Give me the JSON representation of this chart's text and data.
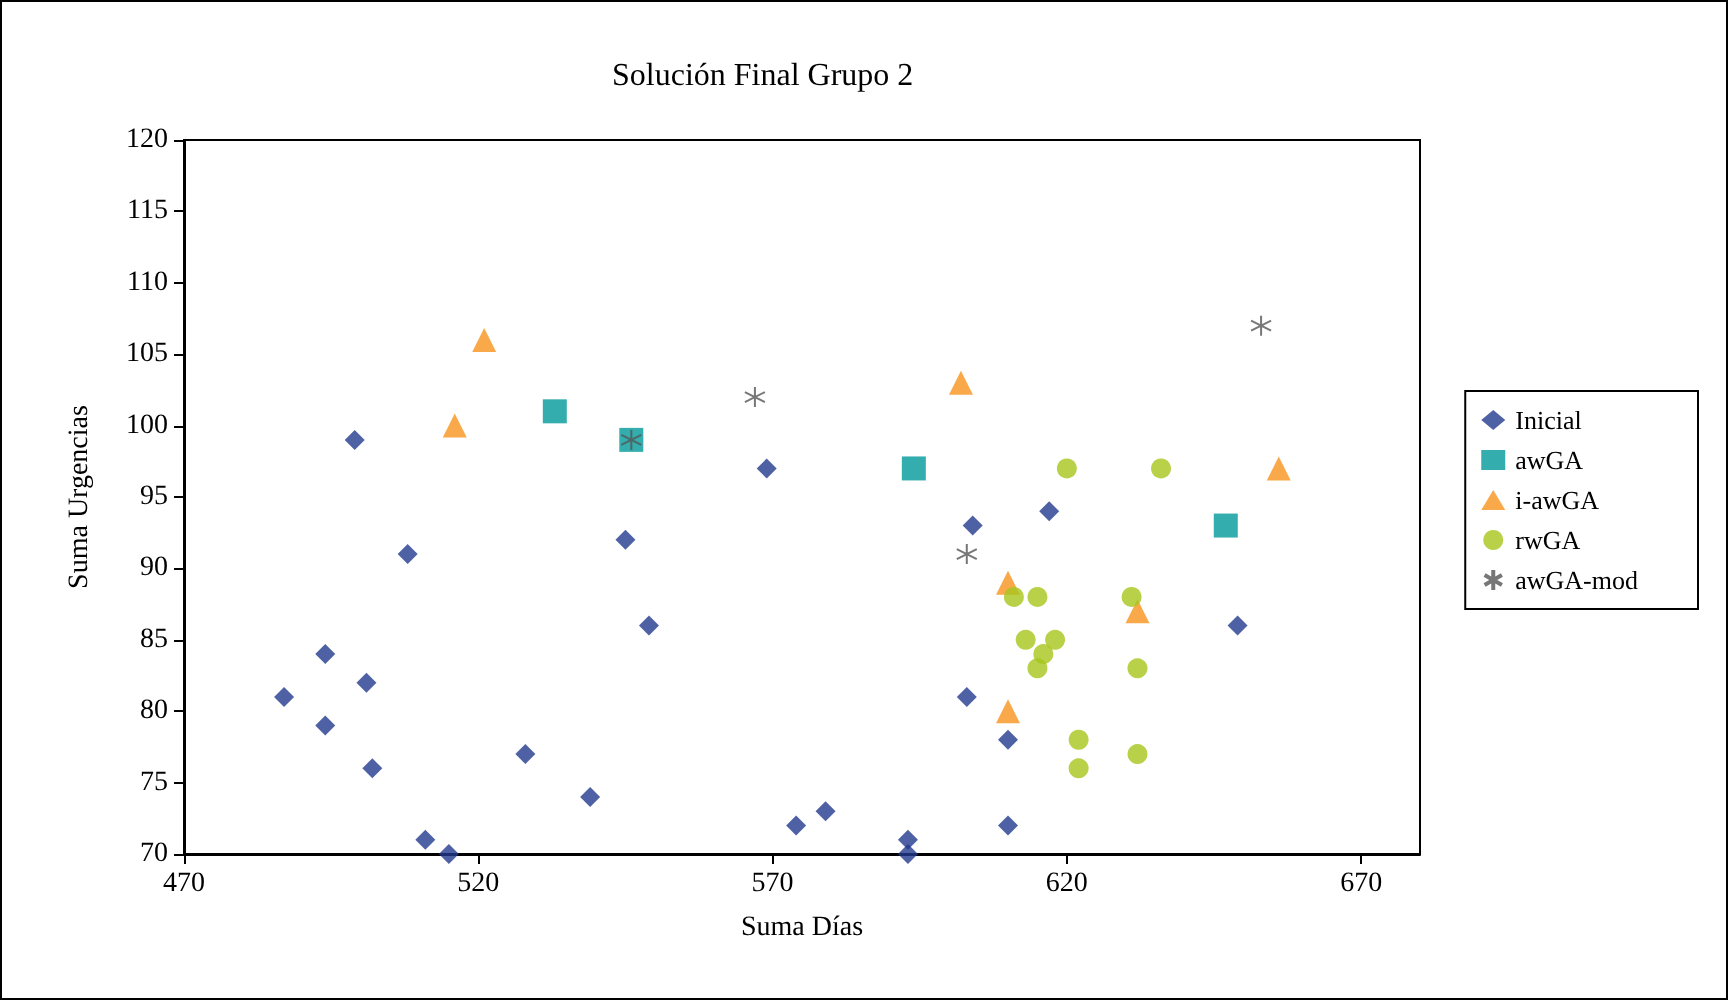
{
  "chart_data": {
    "type": "scatter",
    "title": "Solución Final Grupo 2",
    "xlabel": "Suma Días",
    "ylabel": "Suma Urgencias",
    "xlim": [
      470,
      680
    ],
    "xticks": [
      470,
      520,
      570,
      620,
      670
    ],
    "ylim": [
      70,
      120
    ],
    "yticks": [
      70,
      75,
      80,
      85,
      90,
      95,
      100,
      105,
      110,
      115,
      120
    ],
    "grid": false,
    "legend": "right",
    "series": [
      {
        "name": "Inicial",
        "color": "#233a8e",
        "marker": "diamond",
        "x": [
          499,
          508,
          494,
          487,
          494,
          501,
          502,
          511,
          515,
          528,
          539,
          545,
          549,
          569,
          574,
          579,
          593,
          593,
          604,
          603,
          610,
          610,
          617,
          649
        ],
        "values": [
          99,
          91,
          84,
          81,
          79,
          82,
          76,
          71,
          70,
          77,
          74,
          92,
          86,
          97,
          72,
          73,
          71,
          70,
          93,
          81,
          78,
          72,
          94,
          86
        ]
      },
      {
        "name": "awGA",
        "color": "#009999",
        "marker": "square",
        "x": [
          533,
          546,
          594,
          647
        ],
        "values": [
          101,
          99,
          97,
          93
        ]
      },
      {
        "name": "i-awGA",
        "color": "#f7941d",
        "marker": "triangle",
        "x": [
          521,
          516,
          602,
          610,
          610,
          632,
          656
        ],
        "values": [
          106,
          100,
          103,
          89,
          80,
          87,
          97
        ]
      },
      {
        "name": "rwGA",
        "color": "#a6c51a",
        "marker": "circle",
        "x": [
          620,
          636,
          611,
          615,
          631,
          613,
          618,
          616,
          615,
          632,
          622,
          622,
          632
        ],
        "values": [
          97,
          97,
          88,
          88,
          88,
          85,
          85,
          84,
          83,
          83,
          78,
          76,
          77
        ]
      },
      {
        "name": "awGA-mod",
        "color": "#555555",
        "marker": "cross",
        "x": [
          567,
          546,
          603,
          653
        ],
        "values": [
          102,
          99,
          91,
          107
        ]
      }
    ]
  }
}
